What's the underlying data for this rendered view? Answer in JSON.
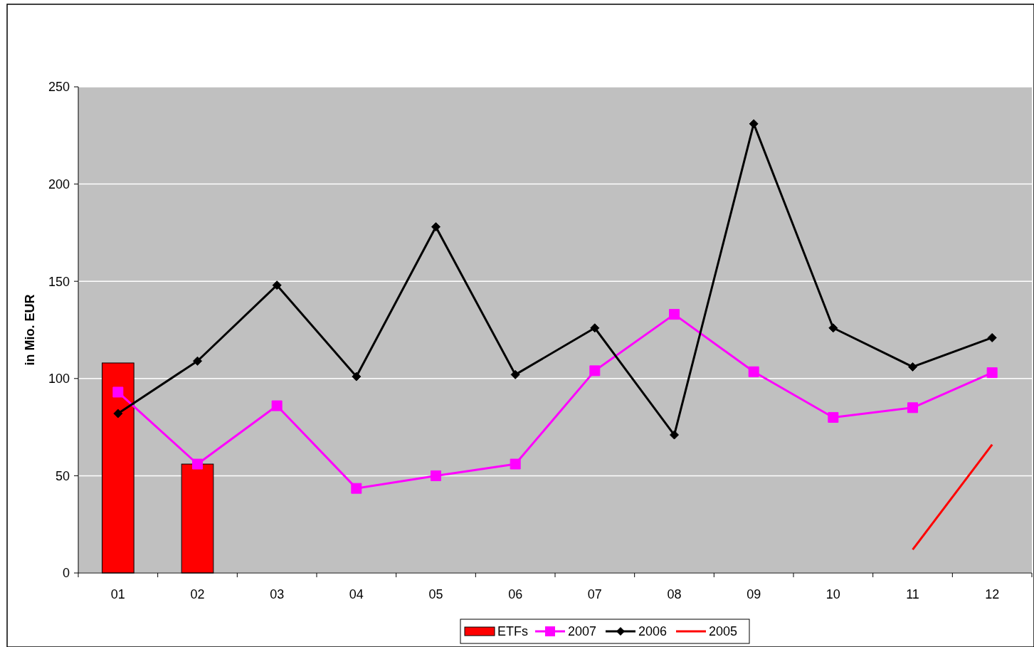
{
  "chart_data": {
    "type": "bar",
    "ylabel": "in Mio. EUR",
    "categories": [
      "01",
      "02",
      "03",
      "04",
      "05",
      "06",
      "07",
      "08",
      "09",
      "10",
      "11",
      "12"
    ],
    "series": [
      {
        "name": "ETFs",
        "color": "#ff0000",
        "values": [
          108,
          56,
          null,
          null,
          null,
          null,
          null,
          null,
          null,
          null,
          null,
          null
        ]
      },
      {
        "name": "2007",
        "type": "line",
        "color": "#ff00ff",
        "marker": "square",
        "values": [
          93,
          56,
          86,
          43.5,
          50,
          56,
          104,
          133,
          103.5,
          80,
          85,
          103
        ]
      },
      {
        "name": "2006",
        "type": "line",
        "color": "#000000",
        "marker": "diamond",
        "values": [
          82,
          109,
          148,
          101,
          178,
          102,
          126,
          71,
          231,
          126,
          106,
          121
        ]
      },
      {
        "name": "2005",
        "type": "line",
        "color": "#ff0000",
        "marker": "none",
        "values": [
          null,
          null,
          null,
          null,
          null,
          null,
          null,
          null,
          null,
          null,
          12,
          66
        ]
      }
    ],
    "ylim": [
      0,
      250
    ],
    "yticks": [
      0,
      50,
      100,
      150,
      200,
      250
    ],
    "grid": "y",
    "legend": "bottom"
  }
}
